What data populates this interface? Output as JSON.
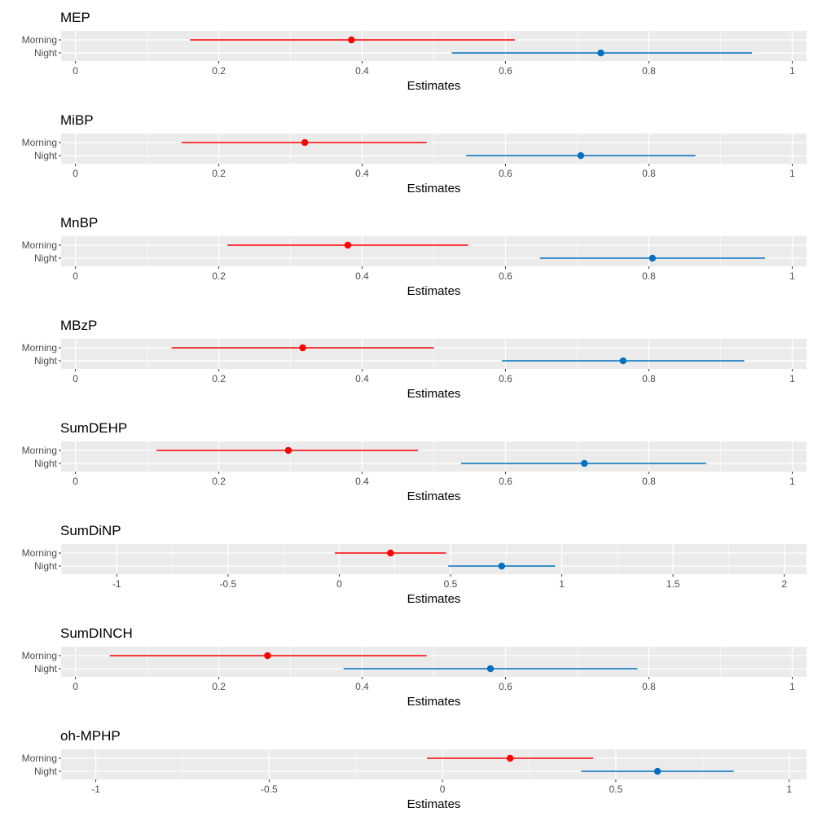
{
  "chart_data": [
    {
      "type": "forest",
      "title": "MEP",
      "xlabel": "Estimates",
      "xlim": [
        -0.02,
        1.02
      ],
      "ticks": [
        0,
        0.2,
        0.4,
        0.6,
        0.8,
        1
      ],
      "tick_labels": [
        "0",
        "0.2",
        "0.4",
        "0.6",
        "0.8",
        "1"
      ],
      "series": [
        {
          "name": "Morning",
          "estimate": 0.385,
          "lower": 0.16,
          "upper": 0.613,
          "color": "#ff0000"
        },
        {
          "name": "Night",
          "estimate": 0.733,
          "lower": 0.525,
          "upper": 0.944,
          "color": "#0070c0"
        }
      ]
    },
    {
      "type": "forest",
      "title": "MiBP",
      "xlabel": "Estimates",
      "xlim": [
        -0.02,
        1.02
      ],
      "ticks": [
        0,
        0.2,
        0.4,
        0.6,
        0.8,
        1
      ],
      "tick_labels": [
        "0",
        "0.2",
        "0.4",
        "0.6",
        "0.8",
        "1"
      ],
      "series": [
        {
          "name": "Morning",
          "estimate": 0.32,
          "lower": 0.148,
          "upper": 0.49,
          "color": "#ff0000"
        },
        {
          "name": "Night",
          "estimate": 0.705,
          "lower": 0.545,
          "upper": 0.865,
          "color": "#0070c0"
        }
      ]
    },
    {
      "type": "forest",
      "title": "MnBP",
      "xlabel": "Estimates",
      "xlim": [
        -0.02,
        1.02
      ],
      "ticks": [
        0,
        0.2,
        0.4,
        0.6,
        0.8,
        1
      ],
      "tick_labels": [
        "0",
        "0.2",
        "0.4",
        "0.6",
        "0.8",
        "1"
      ],
      "series": [
        {
          "name": "Morning",
          "estimate": 0.38,
          "lower": 0.212,
          "upper": 0.548,
          "color": "#ff0000"
        },
        {
          "name": "Night",
          "estimate": 0.805,
          "lower": 0.648,
          "upper": 0.962,
          "color": "#0070c0"
        }
      ]
    },
    {
      "type": "forest",
      "title": "MBzP",
      "xlabel": "Estimates",
      "xlim": [
        -0.02,
        1.02
      ],
      "ticks": [
        0,
        0.2,
        0.4,
        0.6,
        0.8,
        1
      ],
      "tick_labels": [
        "0",
        "0.2",
        "0.4",
        "0.6",
        "0.8",
        "1"
      ],
      "series": [
        {
          "name": "Morning",
          "estimate": 0.317,
          "lower": 0.134,
          "upper": 0.5,
          "color": "#ff0000"
        },
        {
          "name": "Night",
          "estimate": 0.764,
          "lower": 0.595,
          "upper": 0.933,
          "color": "#0070c0"
        }
      ]
    },
    {
      "type": "forest",
      "title": "SumDEHP",
      "xlabel": "Estimates",
      "xlim": [
        -0.02,
        1.02
      ],
      "ticks": [
        0,
        0.2,
        0.4,
        0.6,
        0.8,
        1
      ],
      "tick_labels": [
        "0",
        "0.2",
        "0.4",
        "0.6",
        "0.8",
        "1"
      ],
      "series": [
        {
          "name": "Morning",
          "estimate": 0.297,
          "lower": 0.113,
          "upper": 0.478,
          "color": "#ff0000"
        },
        {
          "name": "Night",
          "estimate": 0.71,
          "lower": 0.538,
          "upper": 0.88,
          "color": "#0070c0"
        }
      ]
    },
    {
      "type": "forest",
      "title": "SumDiNP",
      "xlabel": "Estimates",
      "xlim": [
        -1.25,
        2.1
      ],
      "ticks": [
        -1,
        -0.5,
        0,
        0.5,
        1,
        1.5,
        2
      ],
      "tick_labels": [
        "-1",
        "-0.5",
        "0",
        "0.5",
        "1",
        "1.5",
        "2"
      ],
      "series": [
        {
          "name": "Morning",
          "estimate": 0.23,
          "lower": -0.02,
          "upper": 0.48,
          "color": "#ff0000"
        },
        {
          "name": "Night",
          "estimate": 0.73,
          "lower": 0.49,
          "upper": 0.97,
          "color": "#0070c0"
        }
      ]
    },
    {
      "type": "forest",
      "title": "SumDINCH",
      "xlabel": "Estimates",
      "xlim": [
        -0.02,
        1.02
      ],
      "ticks": [
        0,
        0.2,
        0.4,
        0.6,
        0.8,
        1
      ],
      "tick_labels": [
        "0",
        "0.2",
        "0.4",
        "0.6",
        "0.8",
        "1"
      ],
      "series": [
        {
          "name": "Morning",
          "estimate": 0.268,
          "lower": 0.048,
          "upper": 0.49,
          "color": "#ff0000"
        },
        {
          "name": "Night",
          "estimate": 0.579,
          "lower": 0.374,
          "upper": 0.784,
          "color": "#0070c0"
        }
      ]
    },
    {
      "type": "forest",
      "title": "oh-MPHP",
      "xlabel": "Estimates",
      "xlim": [
        -1.1,
        1.05
      ],
      "ticks": [
        -1,
        -0.5,
        0,
        0.5,
        1
      ],
      "tick_labels": [
        "-1",
        "-0.5",
        "0",
        "0.5",
        "1"
      ],
      "series": [
        {
          "name": "Morning",
          "estimate": 0.195,
          "lower": -0.045,
          "upper": 0.435,
          "color": "#ff0000"
        },
        {
          "name": "Night",
          "estimate": 0.62,
          "lower": 0.4,
          "upper": 0.84,
          "color": "#0070c0"
        }
      ]
    }
  ]
}
